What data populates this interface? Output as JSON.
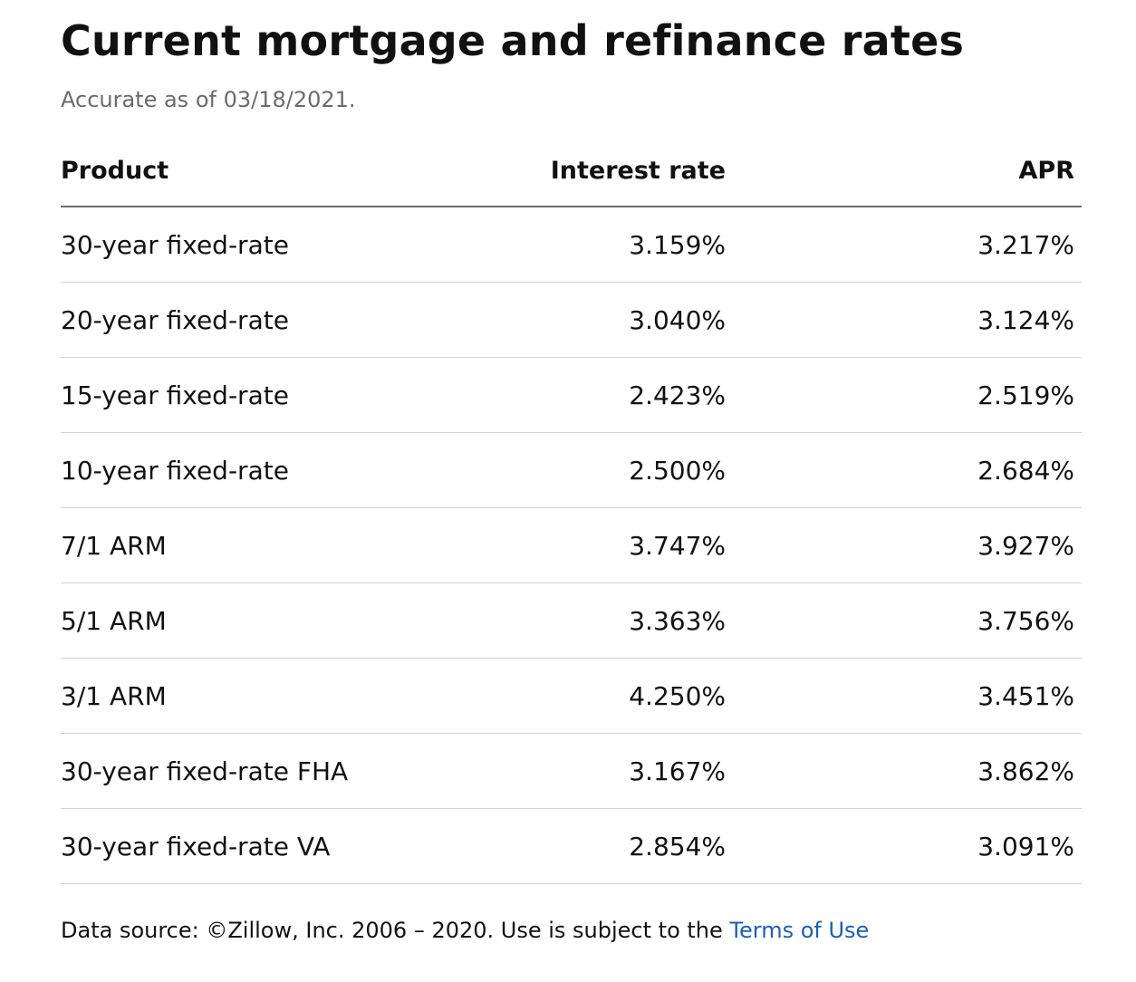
{
  "header": {
    "title": "Current mortgage and refinance rates",
    "subtitle": "Accurate as of 03/18/2021."
  },
  "table": {
    "columns": [
      "Product",
      "Interest rate",
      "APR"
    ],
    "rows": [
      {
        "product": "30-year fixed-rate",
        "interest_rate": "3.159%",
        "apr": "3.217%"
      },
      {
        "product": "20-year fixed-rate",
        "interest_rate": "3.040%",
        "apr": "3.124%"
      },
      {
        "product": "15-year fixed-rate",
        "interest_rate": "2.423%",
        "apr": "2.519%"
      },
      {
        "product": "10-year fixed-rate",
        "interest_rate": "2.500%",
        "apr": "2.684%"
      },
      {
        "product": "7/1 ARM",
        "interest_rate": "3.747%",
        "apr": "3.927%"
      },
      {
        "product": "5/1 ARM",
        "interest_rate": "3.363%",
        "apr": "3.756%"
      },
      {
        "product": "3/1 ARM",
        "interest_rate": "4.250%",
        "apr": "3.451%"
      },
      {
        "product": "30-year fixed-rate FHA",
        "interest_rate": "3.167%",
        "apr": "3.862%"
      },
      {
        "product": "30-year fixed-rate VA",
        "interest_rate": "2.854%",
        "apr": "3.091%"
      }
    ]
  },
  "footer": {
    "text": "Data source: ©Zillow, Inc. 2006 – 2020. Use is subject to the ",
    "link_label": "Terms of Use"
  },
  "colors": {
    "link": "#1a5fb4",
    "subtitle": "#6b6b6b",
    "header_rule": "#6d6d6d",
    "row_rule": "#d4d4d4"
  }
}
